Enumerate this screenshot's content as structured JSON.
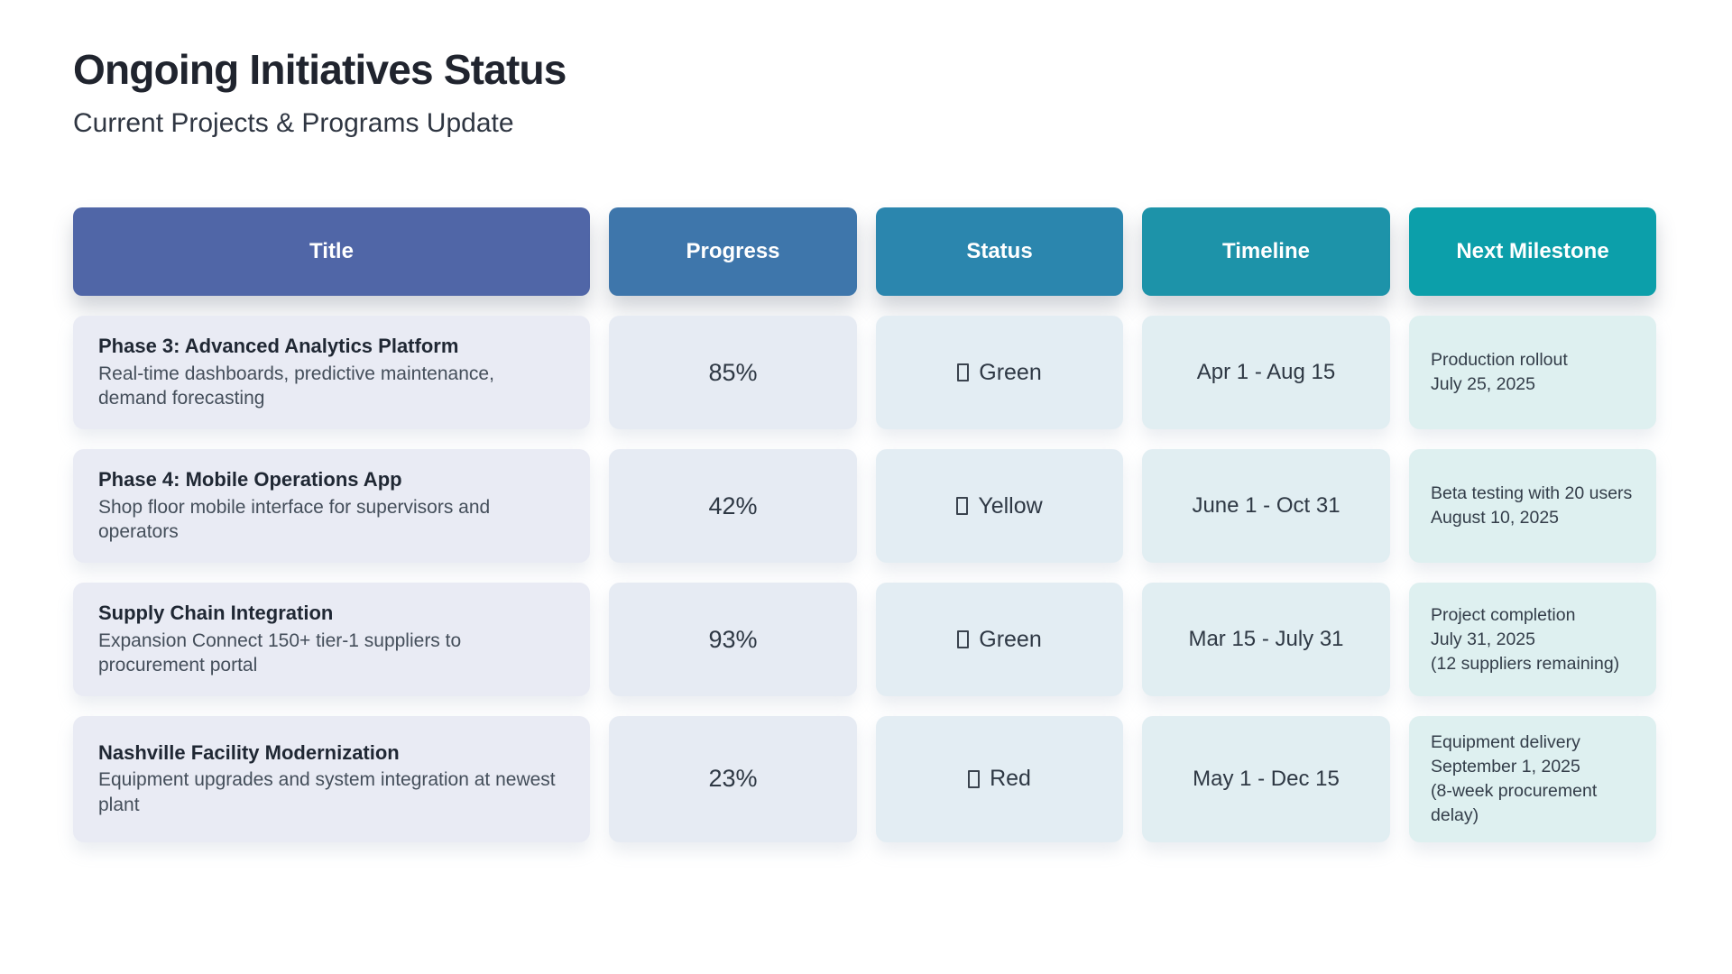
{
  "page": {
    "title": "Ongoing Initiatives Status",
    "subtitle": "Current Projects & Programs Update"
  },
  "table": {
    "headers": [
      "Title",
      "Progress",
      "Status",
      "Timeline",
      "Next Milestone"
    ],
    "header_colors": [
      "#5066a7",
      "#3e76ab",
      "#2b86ae",
      "#1d93a9",
      "#0c9faa"
    ],
    "cell_colors": [
      "#e9ebf4",
      "#e6ebf3",
      "#e3edf3",
      "#e1eef2",
      "#def0f0"
    ],
    "rows": [
      {
        "title": "Phase 3: Advanced Analytics Platform",
        "description": "Real-time dashboards, predictive maintenance, demand forecasting",
        "progress": "85%",
        "status": "Green",
        "timeline": "Apr 1 - Aug 15",
        "milestone": "Production rollout\nJuly 25, 2025"
      },
      {
        "title": "Phase 4: Mobile Operations App",
        "description": "Shop floor mobile interface for supervisors and operators",
        "progress": "42%",
        "status": "Yellow",
        "timeline": "June 1 - Oct 31",
        "milestone": "Beta testing with 20 users\nAugust 10, 2025"
      },
      {
        "title": "Supply Chain Integration",
        "description": "Expansion Connect 150+ tier-1 suppliers to procurement portal",
        "progress": "93%",
        "status": "Green",
        "timeline": "Mar 15 - July 31",
        "milestone": "Project completion\nJuly 31, 2025\n(12 suppliers remaining)"
      },
      {
        "title": "Nashville Facility Modernization",
        "description": "Equipment upgrades and system integration at newest plant",
        "progress": "23%",
        "status": "Red",
        "timeline": "May 1 - Dec 15",
        "milestone": "Equipment delivery\nSeptember 1, 2025\n(8-week procurement delay)"
      }
    ]
  }
}
